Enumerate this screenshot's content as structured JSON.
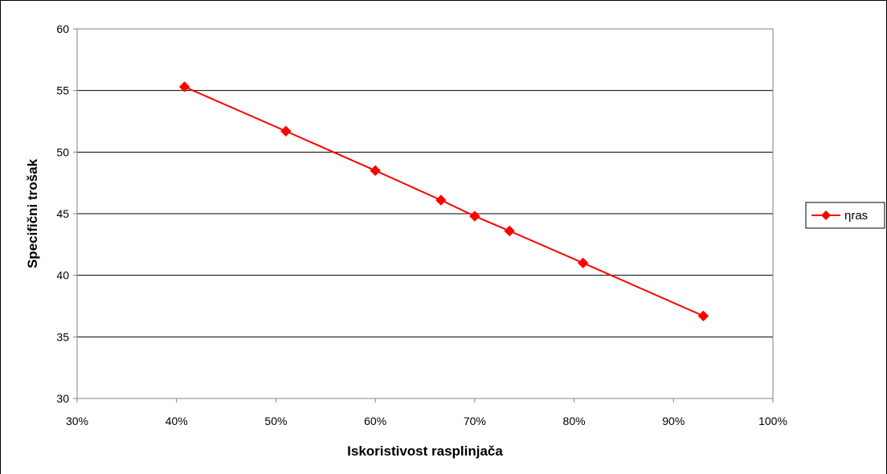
{
  "chart_data": {
    "type": "line",
    "title": "",
    "xlabel": "Iskoristivost rasplinjača",
    "ylabel": "Specifični trošak",
    "x_tick_labels": [
      "30%",
      "40%",
      "50%",
      "60%",
      "70%",
      "80%",
      "90%",
      "100%"
    ],
    "y_tick_labels": [
      "30",
      "35",
      "40",
      "45",
      "50",
      "55",
      "60"
    ],
    "x_ticks": [
      0.3,
      0.4,
      0.5,
      0.6,
      0.7,
      0.8,
      0.9,
      1.0
    ],
    "y_ticks": [
      30,
      35,
      40,
      45,
      50,
      55,
      60
    ],
    "xlim": [
      0.3,
      1.0
    ],
    "ylim": [
      30,
      60
    ],
    "grid": "horizontal",
    "legend_position": "right",
    "series": [
      {
        "name": "ηras",
        "color": "#ff0000",
        "marker": "diamond",
        "x": [
          0.408,
          0.51,
          0.6,
          0.666,
          0.7,
          0.735,
          0.809,
          0.93
        ],
        "y": [
          55.3,
          51.7,
          48.5,
          46.1,
          44.8,
          43.6,
          41.0,
          36.7
        ]
      }
    ]
  }
}
